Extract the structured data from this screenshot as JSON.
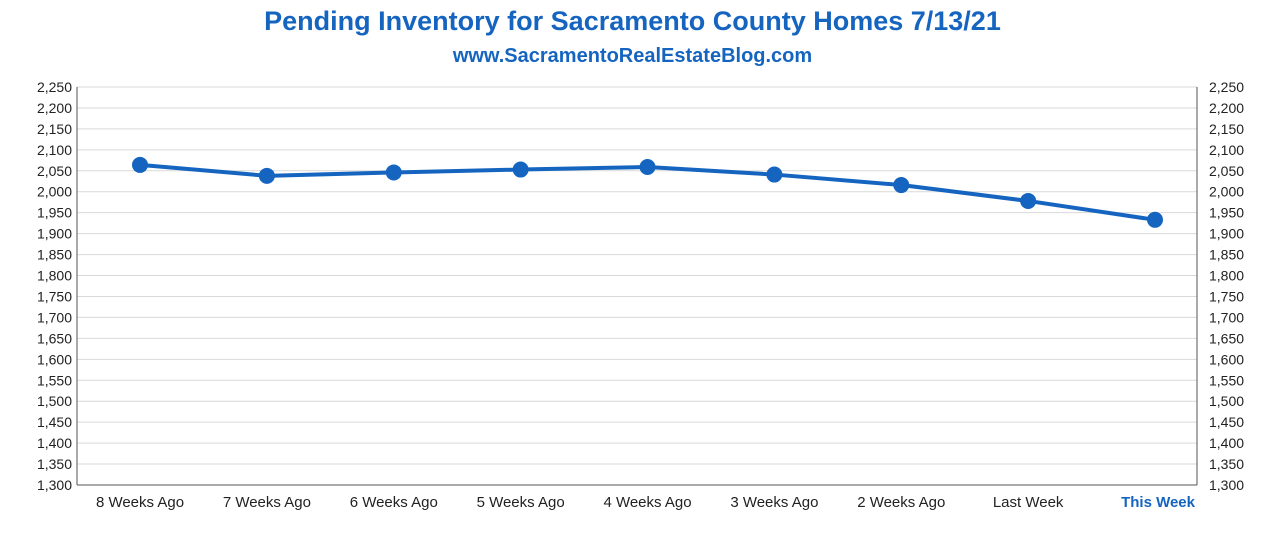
{
  "chart_data": {
    "type": "line",
    "title": "Pending Inventory for Sacramento County Homes 7/13/21",
    "subtitle": "www.SacramentoRealEstateBlog.com",
    "categories": [
      "8 Weeks Ago",
      "7 Weeks Ago",
      "6 Weeks Ago",
      "5 Weeks Ago",
      "4 Weeks Ago",
      "3 Weeks Ago",
      "2 Weeks Ago",
      "Last Week",
      "This Week"
    ],
    "highlighted_category": "This Week",
    "series": [
      {
        "values": [
          2064,
          2038,
          2046,
          2053,
          2059,
          2041,
          2016,
          1978,
          1933
        ]
      }
    ],
    "ylim": [
      1300,
      2250
    ],
    "y_ticks": [
      "2,250",
      "2,200",
      "2,150",
      "2,100",
      "2,050",
      "2,000",
      "1,950",
      "1,900",
      "1,850",
      "1,800",
      "1,750",
      "1,700",
      "1,650",
      "1,600",
      "1,550",
      "1,500",
      "1,450",
      "1,400",
      "1,350",
      "1,300"
    ],
    "y_axis_both_sides": true,
    "grid": true,
    "line_color": "#1565c0",
    "highlight_color": "#1565c0"
  }
}
